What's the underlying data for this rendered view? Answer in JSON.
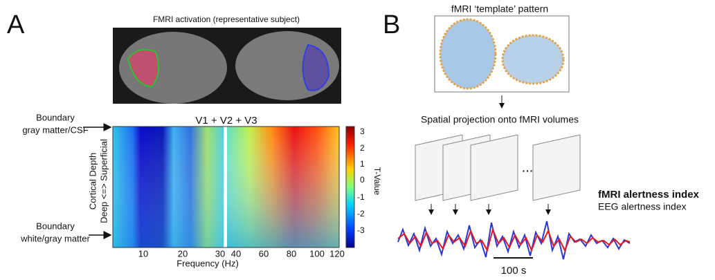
{
  "panel_a": {
    "label": "A",
    "fmri_title": "FMRI activation (representative subject)",
    "heatmap_title": "V1 + V2 + V3",
    "boundary_top": [
      "Boundary",
      "gray matter/CSF"
    ],
    "boundary_bottom": [
      "Boundary",
      "white/gray matter"
    ],
    "y_axis_label": [
      "Cortical Depth",
      "Deep <=> Superficial"
    ],
    "x_axis_label": "Frequency (Hz)",
    "x_ticks_left": [
      "10",
      "20",
      "30"
    ],
    "x_ticks_right": [
      "40",
      "60",
      "80",
      "100",
      "120"
    ],
    "colorbar_label": "T-Value",
    "colorbar_ticks": [
      "3",
      "2",
      "1",
      "0",
      "-1",
      "-2",
      "-3"
    ]
  },
  "panel_b": {
    "label": "B",
    "template_title": "fMRI ‘template’ pattern",
    "projection_label": "Spatial projection onto fMRI volumes",
    "ellipsis": "...",
    "legend": [
      {
        "text": "fMRI alertness index",
        "color": "#e8161b"
      },
      {
        "text": "EEG alertness index",
        "color": "#2a35d6"
      }
    ],
    "scale_bar": "100 s"
  }
}
